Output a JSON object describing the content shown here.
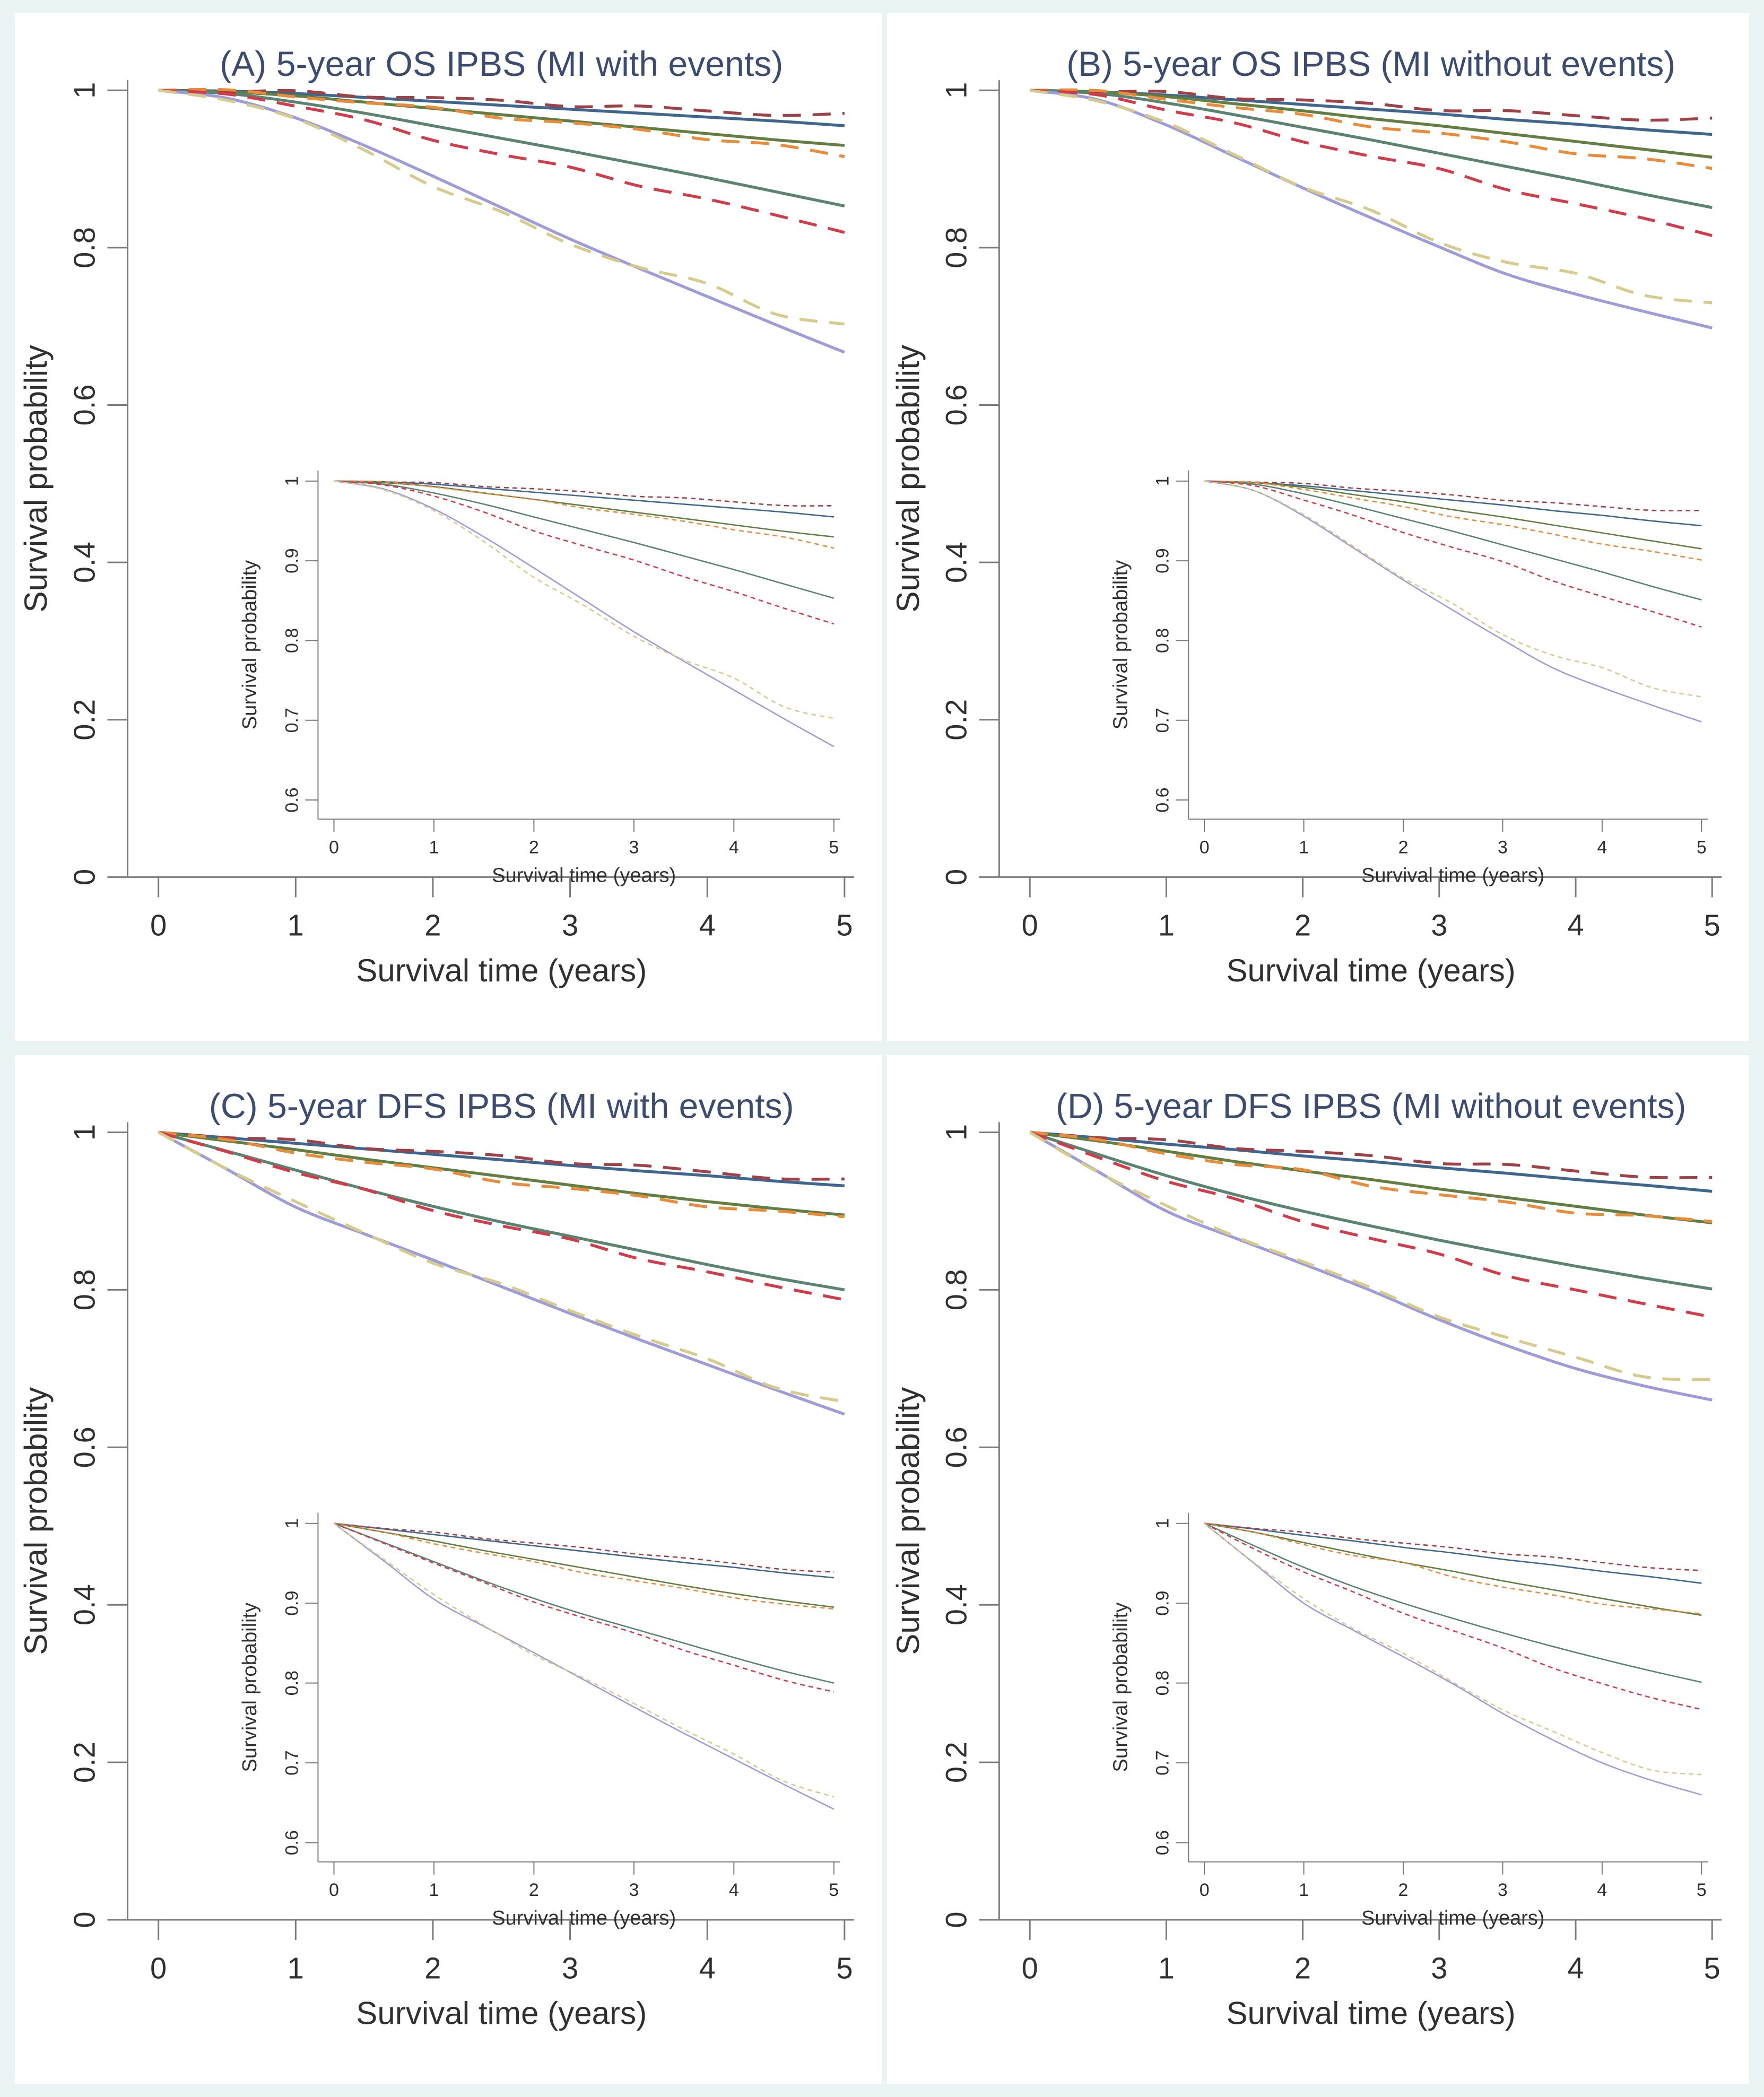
{
  "figure": {
    "background_color": "#eaf4f5",
    "panel_background": "#ffffff",
    "title_color": "#3c4b70",
    "axis_color": "#7a7a7a",
    "tick_text_color": "#303030"
  },
  "chart_data": [
    {
      "type": "line",
      "title": "(A) 5-year OS IPBS (MI with events)",
      "xlabel": "Survival time (years)",
      "ylabel": "Survival probability",
      "xlim": [
        0,
        5
      ],
      "ylim": [
        0,
        1
      ],
      "xticks": [
        0,
        1,
        2,
        3,
        4,
        5
      ],
      "yticks": [
        0,
        0.2,
        0.4,
        0.6,
        0.8,
        1
      ],
      "grid": false,
      "legend": "none",
      "inset": {
        "xlabel": "Survival time (years)",
        "ylabel": "Survival probability",
        "xlim": [
          0,
          5
        ],
        "ylim": [
          0.6,
          1
        ],
        "xticks": [
          0,
          1,
          2,
          3,
          4,
          5
        ],
        "yticks": [
          0.6,
          0.7,
          0.8,
          0.9,
          1
        ]
      },
      "x": [
        0,
        0.5,
        1,
        1.5,
        2,
        2.5,
        3,
        3.5,
        4,
        4.5,
        5
      ],
      "series": [
        {
          "name": "navy-solid",
          "style": "solid",
          "color": "#3f668f",
          "values": [
            1,
            0.999,
            0.996,
            0.991,
            0.986,
            0.981,
            0.976,
            0.971,
            0.966,
            0.961,
            0.955
          ]
        },
        {
          "name": "olive-solid",
          "style": "solid",
          "color": "#627e42",
          "values": [
            1,
            0.998,
            0.993,
            0.985,
            0.977,
            0.969,
            0.961,
            0.953,
            0.945,
            0.937,
            0.93
          ]
        },
        {
          "name": "seagreen-solid",
          "style": "solid",
          "color": "#5a8370",
          "values": [
            1,
            0.996,
            0.985,
            0.971,
            0.955,
            0.939,
            0.923,
            0.906,
            0.889,
            0.871,
            0.853
          ]
        },
        {
          "name": "lavender-solid",
          "style": "solid",
          "color": "#9e9bd9",
          "values": [
            1,
            0.99,
            0.965,
            0.93,
            0.891,
            0.851,
            0.811,
            0.774,
            0.738,
            0.702,
            0.667
          ]
        },
        {
          "name": "maroon-dashed",
          "style": "dashed",
          "color": "#9e4247",
          "values": [
            1,
            0.999,
            0.997,
            0.994,
            0.99,
            0.986,
            0.982,
            0.978,
            0.974,
            0.97,
            0.968
          ]
        },
        {
          "name": "orange-dashed",
          "style": "dashed",
          "color": "#e98b38",
          "values": [
            1,
            0.998,
            0.993,
            0.985,
            0.976,
            0.967,
            0.958,
            0.949,
            0.94,
            0.929,
            0.916
          ]
        },
        {
          "name": "red-dashed",
          "style": "dashed",
          "color": "#d23b49",
          "values": [
            1,
            0.995,
            0.982,
            0.96,
            0.938,
            0.919,
            0.9,
            0.881,
            0.861,
            0.84,
            0.822
          ]
        },
        {
          "name": "khaki-dashed",
          "style": "dashed",
          "color": "#d6cb8d",
          "values": [
            1,
            0.99,
            0.962,
            0.924,
            0.88,
            0.843,
            0.806,
            0.776,
            0.752,
            0.718,
            0.702
          ]
        }
      ]
    },
    {
      "type": "line",
      "title": "(B) 5-year OS IPBS (MI without events)",
      "xlabel": "Survival time (years)",
      "ylabel": "Survival probability",
      "xlim": [
        0,
        5
      ],
      "ylim": [
        0,
        1
      ],
      "xticks": [
        0,
        1,
        2,
        3,
        4,
        5
      ],
      "yticks": [
        0,
        0.2,
        0.4,
        0.6,
        0.8,
        1
      ],
      "grid": false,
      "legend": "none",
      "inset": {
        "xlabel": "Survival time (years)",
        "ylabel": "Survival probability",
        "xlim": [
          0,
          5
        ],
        "ylim": [
          0.6,
          1
        ],
        "xticks": [
          0,
          1,
          2,
          3,
          4,
          5
        ],
        "yticks": [
          0.6,
          0.7,
          0.8,
          0.9,
          1
        ]
      },
      "x": [
        0,
        0.5,
        1,
        1.5,
        2,
        2.5,
        3,
        3.5,
        4,
        4.5,
        5
      ],
      "series": [
        {
          "name": "navy-solid",
          "style": "solid",
          "color": "#3f668f",
          "values": [
            1,
            0.998,
            0.994,
            0.988,
            0.982,
            0.976,
            0.97,
            0.963,
            0.957,
            0.95,
            0.944
          ]
        },
        {
          "name": "olive-solid",
          "style": "solid",
          "color": "#627e42",
          "values": [
            1,
            0.998,
            0.992,
            0.983,
            0.974,
            0.964,
            0.955,
            0.945,
            0.935,
            0.925,
            0.915
          ]
        },
        {
          "name": "seagreen-solid",
          "style": "solid",
          "color": "#5a8370",
          "values": [
            1,
            0.996,
            0.984,
            0.969,
            0.953,
            0.937,
            0.92,
            0.903,
            0.886,
            0.868,
            0.851
          ]
        },
        {
          "name": "lavender-solid",
          "style": "solid",
          "color": "#9e9bd9",
          "values": [
            1,
            0.988,
            0.956,
            0.916,
            0.876,
            0.838,
            0.801,
            0.766,
            0.741,
            0.719,
            0.698
          ]
        },
        {
          "name": "maroon-dashed",
          "style": "dashed",
          "color": "#9e4247",
          "values": [
            1,
            0.999,
            0.996,
            0.992,
            0.987,
            0.982,
            0.977,
            0.972,
            0.968,
            0.964,
            0.962
          ]
        },
        {
          "name": "orange-dashed",
          "style": "dashed",
          "color": "#e98b38",
          "values": [
            1,
            0.997,
            0.99,
            0.979,
            0.967,
            0.956,
            0.945,
            0.933,
            0.922,
            0.911,
            0.901
          ]
        },
        {
          "name": "red-dashed",
          "style": "dashed",
          "color": "#d23b49",
          "values": [
            1,
            0.994,
            0.977,
            0.956,
            0.936,
            0.917,
            0.898,
            0.876,
            0.855,
            0.836,
            0.818
          ]
        },
        {
          "name": "khaki-dashed",
          "style": "dashed",
          "color": "#d6cb8d",
          "values": [
            1,
            0.989,
            0.957,
            0.918,
            0.879,
            0.845,
            0.808,
            0.782,
            0.765,
            0.742,
            0.729
          ]
        }
      ]
    },
    {
      "type": "line",
      "title": "(C) 5-year DFS IPBS (MI with events)",
      "xlabel": "Survival time (years)",
      "ylabel": "Survival probability",
      "xlim": [
        0,
        5
      ],
      "ylim": [
        0,
        1
      ],
      "xticks": [
        0,
        1,
        2,
        3,
        4,
        5
      ],
      "yticks": [
        0,
        0.2,
        0.4,
        0.6,
        0.8,
        1
      ],
      "grid": false,
      "legend": "none",
      "inset": {
        "xlabel": "Survival time (years)",
        "ylabel": "Survival probability",
        "xlim": [
          0,
          5
        ],
        "ylim": [
          0.6,
          1
        ],
        "xticks": [
          0,
          1,
          2,
          3,
          4,
          5
        ],
        "yticks": [
          0.6,
          0.7,
          0.8,
          0.9,
          1
        ]
      },
      "x": [
        0,
        0.5,
        1,
        1.5,
        2,
        2.5,
        3,
        3.5,
        4,
        4.5,
        5
      ],
      "series": [
        {
          "name": "navy-solid",
          "style": "solid",
          "color": "#3f668f",
          "values": [
            1,
            0.993,
            0.986,
            0.979,
            0.972,
            0.965,
            0.958,
            0.951,
            0.945,
            0.938,
            0.932
          ]
        },
        {
          "name": "olive-solid",
          "style": "solid",
          "color": "#627e42",
          "values": [
            1,
            0.989,
            0.978,
            0.966,
            0.955,
            0.944,
            0.933,
            0.922,
            0.912,
            0.903,
            0.895
          ]
        },
        {
          "name": "seagreen-solid",
          "style": "solid",
          "color": "#5a8370",
          "values": [
            1,
            0.976,
            0.952,
            0.928,
            0.906,
            0.886,
            0.868,
            0.85,
            0.832,
            0.815,
            0.8
          ]
        },
        {
          "name": "lavender-solid",
          "style": "solid",
          "color": "#9e9bd9",
          "values": [
            1,
            0.953,
            0.905,
            0.871,
            0.838,
            0.804,
            0.77,
            0.737,
            0.705,
            0.673,
            0.642
          ]
        },
        {
          "name": "maroon-dashed",
          "style": "dashed",
          "color": "#9e4247",
          "values": [
            1,
            0.994,
            0.988,
            0.982,
            0.975,
            0.969,
            0.963,
            0.956,
            0.95,
            0.943,
            0.938
          ]
        },
        {
          "name": "orange-dashed",
          "style": "dashed",
          "color": "#e98b38",
          "values": [
            1,
            0.988,
            0.975,
            0.963,
            0.951,
            0.939,
            0.928,
            0.918,
            0.908,
            0.898,
            0.893
          ]
        },
        {
          "name": "red-dashed",
          "style": "dashed",
          "color": "#d23b49",
          "values": [
            1,
            0.975,
            0.951,
            0.925,
            0.902,
            0.882,
            0.862,
            0.842,
            0.822,
            0.803,
            0.79
          ]
        },
        {
          "name": "khaki-dashed",
          "style": "dashed",
          "color": "#d6cb8d",
          "values": [
            1,
            0.956,
            0.91,
            0.872,
            0.836,
            0.805,
            0.775,
            0.742,
            0.71,
            0.678,
            0.657
          ]
        }
      ]
    },
    {
      "type": "line",
      "title": "(D) 5-year DFS IPBS (MI without events)",
      "xlabel": "Survival time (years)",
      "ylabel": "Survival probability",
      "xlim": [
        0,
        5
      ],
      "ylim": [
        0,
        1
      ],
      "xticks": [
        0,
        1,
        2,
        3,
        4,
        5
      ],
      "yticks": [
        0,
        0.2,
        0.4,
        0.6,
        0.8,
        1
      ],
      "grid": false,
      "legend": "none",
      "inset": {
        "xlabel": "Survival time (years)",
        "ylabel": "Survival probability",
        "xlim": [
          0,
          5
        ],
        "ylim": [
          0.6,
          1
        ],
        "xticks": [
          0,
          1,
          2,
          3,
          4,
          5
        ],
        "yticks": [
          0.6,
          0.7,
          0.8,
          0.9,
          1
        ]
      },
      "x": [
        0,
        0.5,
        1,
        1.5,
        2,
        2.5,
        3,
        3.5,
        4,
        4.5,
        5
      ],
      "series": [
        {
          "name": "navy-solid",
          "style": "solid",
          "color": "#3f668f",
          "values": [
            1,
            0.993,
            0.985,
            0.978,
            0.97,
            0.963,
            0.955,
            0.948,
            0.94,
            0.933,
            0.925
          ]
        },
        {
          "name": "olive-solid",
          "style": "solid",
          "color": "#627e42",
          "values": [
            1,
            0.989,
            0.976,
            0.963,
            0.951,
            0.94,
            0.928,
            0.917,
            0.906,
            0.895,
            0.885
          ]
        },
        {
          "name": "seagreen-solid",
          "style": "solid",
          "color": "#5a8370",
          "values": [
            1,
            0.972,
            0.945,
            0.921,
            0.9,
            0.881,
            0.863,
            0.846,
            0.83,
            0.815,
            0.801
          ]
        },
        {
          "name": "lavender-solid",
          "style": "solid",
          "color": "#9e9bd9",
          "values": [
            1,
            0.95,
            0.9,
            0.866,
            0.833,
            0.799,
            0.762,
            0.729,
            0.7,
            0.678,
            0.66
          ]
        },
        {
          "name": "maroon-dashed",
          "style": "dashed",
          "color": "#9e4247",
          "values": [
            1,
            0.994,
            0.988,
            0.982,
            0.975,
            0.969,
            0.963,
            0.957,
            0.951,
            0.945,
            0.94
          ]
        },
        {
          "name": "orange-dashed",
          "style": "dashed",
          "color": "#e98b38",
          "values": [
            1,
            0.988,
            0.974,
            0.96,
            0.95,
            0.934,
            0.92,
            0.91,
            0.9,
            0.892,
            0.887
          ]
        },
        {
          "name": "red-dashed",
          "style": "dashed",
          "color": "#d23b49",
          "values": [
            1,
            0.968,
            0.94,
            0.913,
            0.888,
            0.866,
            0.843,
            0.82,
            0.799,
            0.781,
            0.768
          ]
        },
        {
          "name": "khaki-dashed",
          "style": "dashed",
          "color": "#d6cb8d",
          "values": [
            1,
            0.952,
            0.905,
            0.868,
            0.838,
            0.8,
            0.767,
            0.74,
            0.712,
            0.692,
            0.685
          ]
        }
      ]
    }
  ]
}
